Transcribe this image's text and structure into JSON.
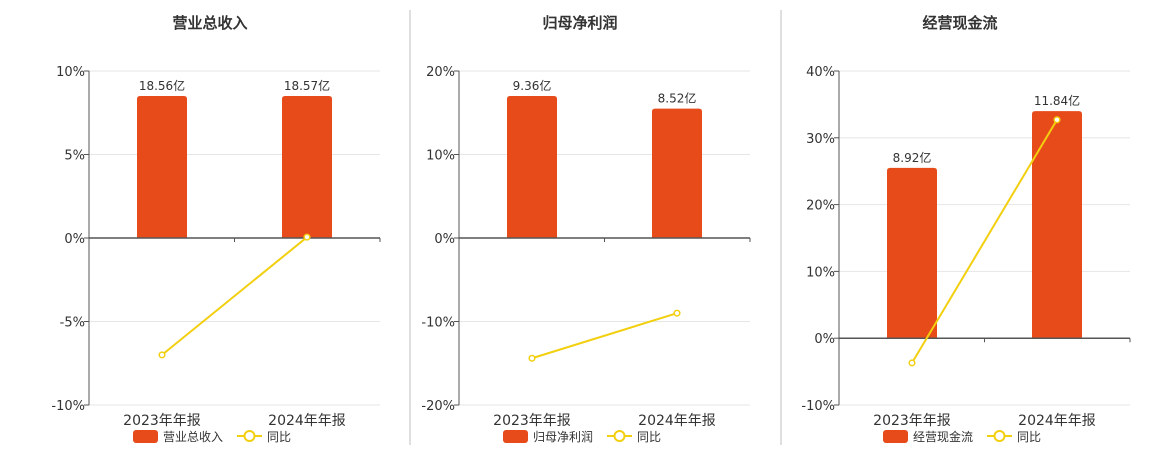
{
  "colors": {
    "bar": "#E84B1A",
    "line": "#F2CF0F",
    "axis": "#555555",
    "grid": "#E6E6E6",
    "divider": "#BFBFBF",
    "text": "#333333"
  },
  "chart_data": [
    {
      "type": "bar",
      "title": "营业总收入",
      "categories": [
        "2023年年报",
        "2024年年报"
      ],
      "y_ticks": [
        "10%",
        "5%",
        "0%",
        "-5%",
        "-10%"
      ],
      "ylim": [
        -10,
        10
      ],
      "grid": true,
      "legend_position": "bottom",
      "series": [
        {
          "name": "营业总收入",
          "type": "bar",
          "values": [
            8.5,
            8.5
          ],
          "labels": [
            "18.56亿",
            "18.57亿"
          ]
        },
        {
          "name": "同比",
          "type": "line",
          "values": [
            -7.0,
            0.05
          ]
        }
      ]
    },
    {
      "type": "bar",
      "title": "归母净利润",
      "categories": [
        "2023年年报",
        "2024年年报"
      ],
      "y_ticks": [
        "20%",
        "10%",
        "0%",
        "-10%",
        "-20%"
      ],
      "ylim": [
        -20,
        20
      ],
      "grid": true,
      "legend_position": "bottom",
      "series": [
        {
          "name": "归母净利润",
          "type": "bar",
          "values": [
            17.0,
            15.5
          ],
          "labels": [
            "9.36亿",
            "8.52亿"
          ]
        },
        {
          "name": "同比",
          "type": "line",
          "values": [
            -14.4,
            -9.0
          ]
        }
      ]
    },
    {
      "type": "bar",
      "title": "经营现金流",
      "categories": [
        "2023年年报",
        "2024年年报"
      ],
      "y_ticks": [
        "40%",
        "30%",
        "20%",
        "10%",
        "0%",
        "-10%"
      ],
      "ylim": [
        -10,
        40
      ],
      "grid": true,
      "legend_position": "bottom",
      "series": [
        {
          "name": "经营现金流",
          "type": "bar",
          "values": [
            25.5,
            34.0
          ],
          "labels": [
            "8.92亿",
            "11.84亿"
          ]
        },
        {
          "name": "同比",
          "type": "line",
          "values": [
            -3.7,
            32.7
          ]
        }
      ]
    }
  ]
}
